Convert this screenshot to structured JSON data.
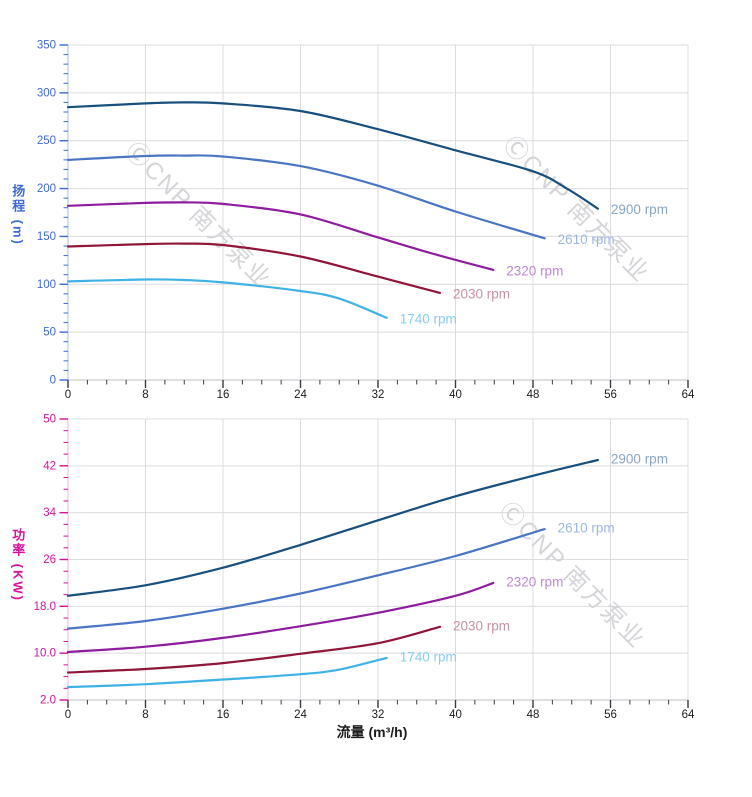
{
  "watermark": {
    "text": "ⒸCNP 南方泵业",
    "color": "#d5d5d9"
  },
  "axis_titles": {
    "head": "扬程 (m)",
    "power": "功率 (KW)",
    "flow": "流量 (m³/h)"
  },
  "x_tick_label_color": "#1c1c1c",
  "chart_data": [
    {
      "type": "line",
      "name": "head-vs-flow",
      "title": "",
      "ylabel": "扬程 (m)",
      "xlabel": "流量 (m³/h)",
      "xlim": [
        0,
        64
      ],
      "ylim": [
        0,
        350
      ],
      "xticks": [
        0,
        8,
        16,
        24,
        32,
        40,
        48,
        56,
        64
      ],
      "yticks": [
        0,
        50,
        100,
        150,
        200,
        250,
        300,
        350
      ],
      "ytick_labels": [
        "0",
        "50",
        "100",
        "150",
        "200",
        "250",
        "300",
        "350"
      ],
      "x_minor_step": 2,
      "y_minor_step": 10,
      "grid": true,
      "legend_position": "curve-end-labels",
      "axis_color": "#3d6ad4",
      "axis_line_color": "#b7c6e8",
      "series": [
        {
          "name": "2900 rpm",
          "color": "#184f7d",
          "label_color": "#8aa6c0",
          "points": [
            [
              0,
              285
            ],
            [
              8,
              289
            ],
            [
              12,
              290
            ],
            [
              16,
              289
            ],
            [
              24,
              281
            ],
            [
              32,
              262
            ],
            [
              40,
              240
            ],
            [
              48,
              218
            ],
            [
              51.5,
              200
            ],
            [
              54.7,
              179
            ]
          ]
        },
        {
          "name": "2610 rpm",
          "color": "#4a74c4",
          "label_color": "#9db6e0",
          "points": [
            [
              0,
              230
            ],
            [
              8,
              234
            ],
            [
              12,
              234.5
            ],
            [
              16,
              233.5
            ],
            [
              24,
              223.5
            ],
            [
              32,
              203
            ],
            [
              40,
              176
            ],
            [
              49.2,
              148
            ]
          ]
        },
        {
          "name": "2320 rpm",
          "color": "#8e1c9e",
          "label_color": "#bd87cf",
          "points": [
            [
              0,
              182
            ],
            [
              8,
              185
            ],
            [
              12,
              185.5
            ],
            [
              16,
              184
            ],
            [
              24,
              173
            ],
            [
              32,
              149
            ],
            [
              38,
              131
            ],
            [
              43.9,
              115
            ]
          ]
        },
        {
          "name": "2030 rpm",
          "color": "#8f1638",
          "label_color": "#c692a1",
          "points": [
            [
              0,
              139.5
            ],
            [
              8,
              142
            ],
            [
              12,
              142.5
            ],
            [
              16,
              141
            ],
            [
              24,
              129
            ],
            [
              32,
              108
            ],
            [
              38.4,
              91
            ]
          ]
        },
        {
          "name": "1740 rpm",
          "color": "#3fb2e5",
          "label_color": "#85cdf2",
          "points": [
            [
              0,
              103
            ],
            [
              8,
              105
            ],
            [
              12,
              104.5
            ],
            [
              16,
              102
            ],
            [
              24,
              93
            ],
            [
              28,
              85
            ],
            [
              32.9,
              65
            ]
          ]
        }
      ]
    },
    {
      "type": "line",
      "name": "power-vs-flow",
      "title": "",
      "ylabel": "功率 (KW)",
      "xlabel": "流量 (m³/h)",
      "xlim": [
        0,
        64
      ],
      "ylim": [
        2,
        50
      ],
      "xticks": [
        0,
        8,
        16,
        24,
        32,
        40,
        48,
        56,
        64
      ],
      "yticks": [
        2,
        10,
        18,
        26,
        34,
        42,
        50
      ],
      "ytick_labels": [
        "2.0",
        "10.0",
        "18.0",
        "26",
        "34",
        "42",
        "50"
      ],
      "x_minor_step": 2,
      "y_minor_step": 2,
      "grid": true,
      "legend_position": "curve-end-labels",
      "axis_color": "#d4129a",
      "axis_line_color": "#eec0e2",
      "series": [
        {
          "name": "2900 rpm",
          "color": "#184f7d",
          "label_color": "#8aa6c0",
          "points": [
            [
              0,
              19.8
            ],
            [
              8,
              21.6
            ],
            [
              16,
              24.6
            ],
            [
              24,
              28.5
            ],
            [
              32,
              32.7
            ],
            [
              40,
              36.8
            ],
            [
              48,
              40.3
            ],
            [
              54.7,
              43
            ]
          ]
        },
        {
          "name": "2610 rpm",
          "color": "#4a74c4",
          "label_color": "#9db6e0",
          "points": [
            [
              0,
              14.2
            ],
            [
              8,
              15.5
            ],
            [
              16,
              17.6
            ],
            [
              24,
              20.2
            ],
            [
              32,
              23.3
            ],
            [
              40,
              26.6
            ],
            [
              49.2,
              31.2
            ]
          ]
        },
        {
          "name": "2320 rpm",
          "color": "#8e1c9e",
          "label_color": "#bd87cf",
          "points": [
            [
              0,
              10.2
            ],
            [
              8,
              11.1
            ],
            [
              16,
              12.6
            ],
            [
              24,
              14.6
            ],
            [
              32,
              16.9
            ],
            [
              40,
              19.8
            ],
            [
              43.9,
              22
            ]
          ]
        },
        {
          "name": "2030 rpm",
          "color": "#8f1638",
          "label_color": "#c692a1",
          "points": [
            [
              0,
              6.7
            ],
            [
              8,
              7.3
            ],
            [
              16,
              8.3
            ],
            [
              24,
              9.9
            ],
            [
              32,
              11.7
            ],
            [
              38.4,
              14.5
            ]
          ]
        },
        {
          "name": "1740 rpm",
          "color": "#3fb2e5",
          "label_color": "#85cdf2",
          "points": [
            [
              0,
              4.2
            ],
            [
              8,
              4.7
            ],
            [
              16,
              5.5
            ],
            [
              24,
              6.4
            ],
            [
              28,
              7.2
            ],
            [
              32.9,
              9.2
            ]
          ]
        }
      ]
    }
  ]
}
